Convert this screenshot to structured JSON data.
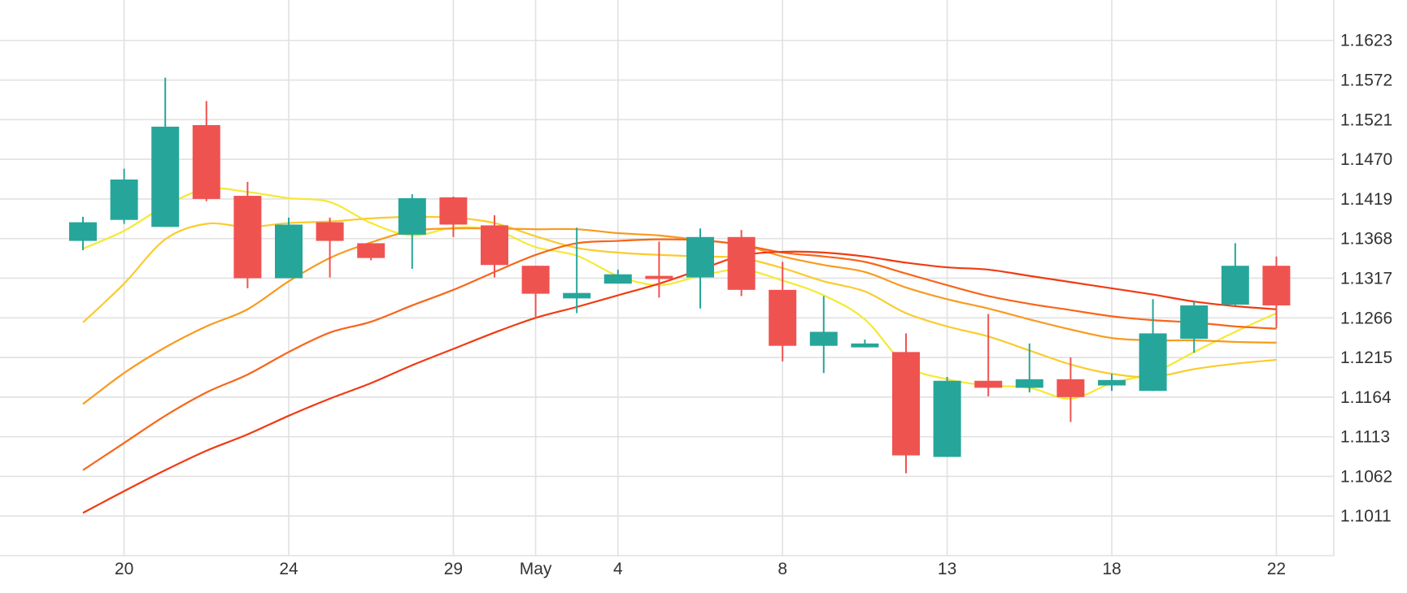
{
  "chart_data": {
    "type": "candlestick",
    "y_ticks": [
      "1.1623",
      "1.1572",
      "1.1521",
      "1.1470",
      "1.1419",
      "1.1368",
      "1.1317",
      "1.1266",
      "1.1215",
      "1.1164",
      "1.1113",
      "1.1062",
      "1.1011"
    ],
    "y_tick_values": [
      1.1623,
      1.1572,
      1.1521,
      1.147,
      1.1419,
      1.1368,
      1.1317,
      1.1266,
      1.1215,
      1.1164,
      1.1113,
      1.1062,
      1.1011
    ],
    "ylim": [
      1.096,
      1.1675
    ],
    "x_ticks": [
      {
        "label": "20",
        "index": 1
      },
      {
        "label": "24",
        "index": 5
      },
      {
        "label": "29",
        "index": 9
      },
      {
        "label": "May",
        "index": 11
      },
      {
        "label": "4",
        "index": 13
      },
      {
        "label": "8",
        "index": 17
      },
      {
        "label": "13",
        "index": 21
      },
      {
        "label": "18",
        "index": 25
      },
      {
        "label": "22",
        "index": 29
      }
    ],
    "up_color": "#26a69a",
    "down_color": "#ef5350",
    "candles": [
      {
        "open": 1.1365,
        "high": 1.1396,
        "low": 1.1353,
        "close": 1.1389
      },
      {
        "open": 1.1392,
        "high": 1.1458,
        "low": 1.1387,
        "close": 1.1444
      },
      {
        "open": 1.1383,
        "high": 1.1575,
        "low": 1.1383,
        "close": 1.1512
      },
      {
        "open": 1.1514,
        "high": 1.1545,
        "low": 1.1416,
        "close": 1.1419
      },
      {
        "open": 1.1423,
        "high": 1.1441,
        "low": 1.1304,
        "close": 1.1317
      },
      {
        "open": 1.1317,
        "high": 1.1395,
        "low": 1.1317,
        "close": 1.1386
      },
      {
        "open": 1.1389,
        "high": 1.1395,
        "low": 1.1318,
        "close": 1.1365
      },
      {
        "open": 1.1362,
        "high": 1.1362,
        "low": 1.134,
        "close": 1.1343
      },
      {
        "open": 1.1373,
        "high": 1.1425,
        "low": 1.1329,
        "close": 1.142
      },
      {
        "open": 1.1421,
        "high": 1.1422,
        "low": 1.137,
        "close": 1.1386
      },
      {
        "open": 1.1385,
        "high": 1.1398,
        "low": 1.1318,
        "close": 1.1334
      },
      {
        "open": 1.1333,
        "high": 1.1333,
        "low": 1.1265,
        "close": 1.1297
      },
      {
        "open": 1.1291,
        "high": 1.1382,
        "low": 1.1272,
        "close": 1.1298
      },
      {
        "open": 1.131,
        "high": 1.1328,
        "low": 1.131,
        "close": 1.1322
      },
      {
        "open": 1.132,
        "high": 1.1364,
        "low": 1.1292,
        "close": 1.1316
      },
      {
        "open": 1.1318,
        "high": 1.1381,
        "low": 1.1278,
        "close": 1.137
      },
      {
        "open": 1.137,
        "high": 1.1379,
        "low": 1.1294,
        "close": 1.1302
      },
      {
        "open": 1.1302,
        "high": 1.1338,
        "low": 1.121,
        "close": 1.123
      },
      {
        "open": 1.123,
        "high": 1.1294,
        "low": 1.1195,
        "close": 1.1248
      },
      {
        "open": 1.1228,
        "high": 1.1238,
        "low": 1.1228,
        "close": 1.1233
      },
      {
        "open": 1.1222,
        "high": 1.1246,
        "low": 1.1066,
        "close": 1.1089
      },
      {
        "open": 1.1087,
        "high": 1.119,
        "low": 1.1087,
        "close": 1.1185
      },
      {
        "open": 1.1185,
        "high": 1.1271,
        "low": 1.1165,
        "close": 1.1176
      },
      {
        "open": 1.1176,
        "high": 1.1233,
        "low": 1.117,
        "close": 1.1187
      },
      {
        "open": 1.1187,
        "high": 1.1215,
        "low": 1.1132,
        "close": 1.1164
      },
      {
        "open": 1.1179,
        "high": 1.1194,
        "low": 1.1172,
        "close": 1.1186
      },
      {
        "open": 1.1172,
        "high": 1.129,
        "low": 1.1172,
        "close": 1.1246
      },
      {
        "open": 1.1239,
        "high": 1.1287,
        "low": 1.1221,
        "close": 1.1282
      },
      {
        "open": 1.1283,
        "high": 1.1362,
        "low": 1.1281,
        "close": 1.1333
      },
      {
        "open": 1.1333,
        "high": 1.1345,
        "low": 1.1253,
        "close": 1.1282
      }
    ],
    "moving_averages": [
      {
        "color": "#f5e933",
        "values": [
          1.1355,
          1.1378,
          1.141,
          1.1432,
          1.1428,
          1.142,
          1.1415,
          1.1388,
          1.1372,
          1.1382,
          1.1379,
          1.1357,
          1.1346,
          1.132,
          1.1308,
          1.132,
          1.1328,
          1.1314,
          1.1295,
          1.1264,
          1.1205,
          1.1187,
          1.1179,
          1.1176,
          1.1162,
          1.1182,
          1.1195,
          1.1222,
          1.1248,
          1.1272
        ]
      },
      {
        "color": "#fbcb2c",
        "values": [
          1.126,
          1.131,
          1.1367,
          1.1387,
          1.1383,
          1.1388,
          1.139,
          1.1394,
          1.1396,
          1.1395,
          1.1388,
          1.1371,
          1.1356,
          1.135,
          1.1347,
          1.1345,
          1.1343,
          1.133,
          1.1313,
          1.13,
          1.1272,
          1.1255,
          1.1242,
          1.1224,
          1.1206,
          1.1194,
          1.119,
          1.12,
          1.1207,
          1.1212
        ]
      },
      {
        "color": "#f99a1f",
        "values": [
          1.1155,
          1.1195,
          1.1228,
          1.1255,
          1.1277,
          1.1313,
          1.1343,
          1.1363,
          1.1378,
          1.1381,
          1.1381,
          1.138,
          1.138,
          1.1375,
          1.1372,
          1.1366,
          1.136,
          1.1345,
          1.1334,
          1.1325,
          1.1305,
          1.129,
          1.1278,
          1.1264,
          1.1251,
          1.124,
          1.1237,
          1.1237,
          1.1235,
          1.1234
        ]
      },
      {
        "color": "#f7661a",
        "values": [
          1.107,
          1.1105,
          1.114,
          1.117,
          1.1193,
          1.1222,
          1.1247,
          1.1261,
          1.1282,
          1.1302,
          1.1325,
          1.1347,
          1.1362,
          1.1365,
          1.1367,
          1.1366,
          1.136,
          1.135,
          1.1345,
          1.1338,
          1.1323,
          1.1308,
          1.1294,
          1.1284,
          1.1276,
          1.1268,
          1.1263,
          1.126,
          1.1255,
          1.1252
        ]
      },
      {
        "color": "#f03b12",
        "values": [
          1.1015,
          1.1043,
          1.107,
          1.1095,
          1.1116,
          1.114,
          1.1162,
          1.1182,
          1.1205,
          1.1226,
          1.1247,
          1.1266,
          1.128,
          1.1295,
          1.131,
          1.1328,
          1.1346,
          1.1351,
          1.135,
          1.1345,
          1.1337,
          1.1331,
          1.1328,
          1.132,
          1.1312,
          1.1304,
          1.1296,
          1.1287,
          1.1281,
          1.1277
        ]
      }
    ]
  }
}
